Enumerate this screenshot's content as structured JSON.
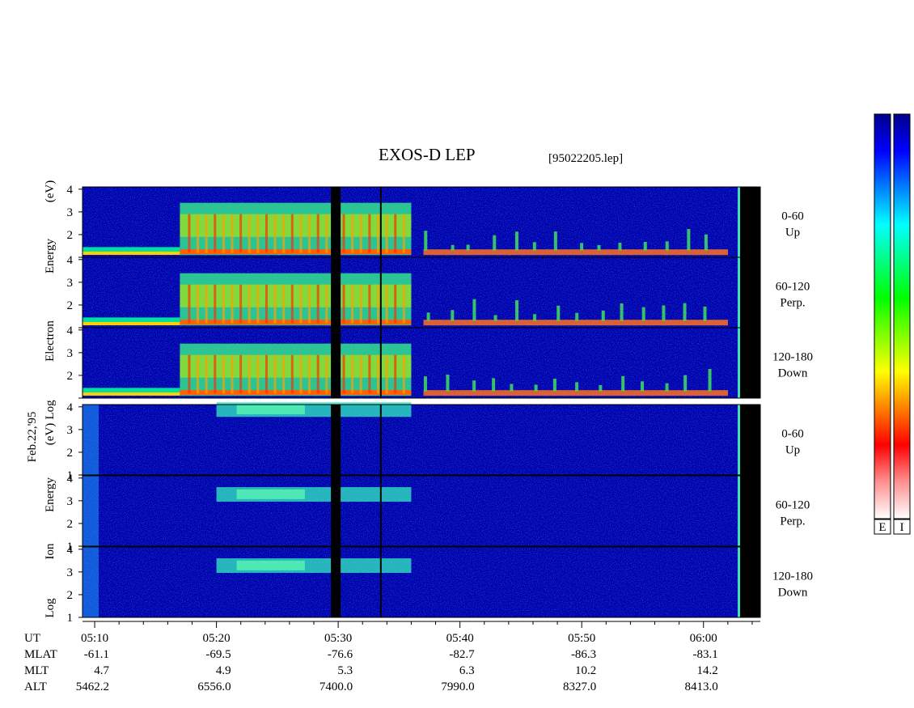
{
  "chart_data": {
    "type": "heatmap",
    "title": "EXOS-D LEP",
    "file_label": "[95022205.lep]",
    "date_label": "Feb.22,'95",
    "x_axis": {
      "quantity": "UT",
      "ticks": [
        "05:10",
        "05:20",
        "05:30",
        "05:40",
        "05:50",
        "06:00"
      ],
      "range": [
        "05:09",
        "06:05"
      ]
    },
    "y_axis": {
      "ticks": [
        "1",
        "2",
        "3",
        "4"
      ],
      "range": [
        1,
        4.1
      ],
      "unit": "log eV"
    },
    "groups": [
      {
        "name": "electron",
        "ylabel_words": [
          "Log",
          "Electron",
          "Energy",
          "(eV)"
        ],
        "panels": [
          {
            "pitch_range": "0-60",
            "direction": "Up"
          },
          {
            "pitch_range": "60-120",
            "direction": "Perp."
          },
          {
            "pitch_range": "120-180",
            "direction": "Down"
          }
        ],
        "features": {
          "low_energy_band_to": "05:17",
          "plasma_sheet_onset": "05:17",
          "intense_region_end": "05:36",
          "data_gap": [
            "05:29.6",
            "05:30.0"
          ],
          "marker_line": "05:33.5",
          "bursts_after": "05:37"
        }
      },
      {
        "name": "ion",
        "ylabel_words": [
          "Log",
          "Ion",
          "Energy",
          "(eV)"
        ],
        "panels": [
          {
            "pitch_range": "0-60",
            "direction": "Up"
          },
          {
            "pitch_range": "60-120",
            "direction": "Perp."
          },
          {
            "pitch_range": "120-180",
            "direction": "Down"
          }
        ],
        "features": {
          "ion_band_start": "05:20",
          "ion_band_end": "05:36",
          "data_gap": [
            "05:29.6",
            "05:30.0"
          ],
          "marker_line": "05:33.5"
        }
      }
    ],
    "ephemeris": [
      {
        "name": "UT",
        "values": [
          "05:10",
          "05:20",
          "05:30",
          "05:40",
          "05:50",
          "06:00"
        ]
      },
      {
        "name": "MLAT",
        "values": [
          "-61.1",
          "-69.5",
          "-76.6",
          "-82.7",
          "-86.3",
          "-83.1"
        ]
      },
      {
        "name": "MLT",
        "values": [
          "4.7",
          "4.9",
          "5.3",
          "6.3",
          "10.2",
          "14.2"
        ]
      },
      {
        "name": "ALT",
        "values": [
          "5462.2",
          "6556.0",
          "7400.0",
          "7990.0",
          "8327.0",
          "8413.0"
        ]
      }
    ],
    "colorbar": {
      "labels": [
        "E",
        "I"
      ],
      "colors": [
        "#00008b",
        "#0000ff",
        "#0080ff",
        "#00ffff",
        "#00ff80",
        "#00ff00",
        "#80ff00",
        "#ffff00",
        "#ff8000",
        "#ff0000",
        "#ff9090",
        "#ffffff"
      ]
    },
    "colors": {
      "background_low": "#0000aa",
      "gap": "#000000"
    }
  }
}
